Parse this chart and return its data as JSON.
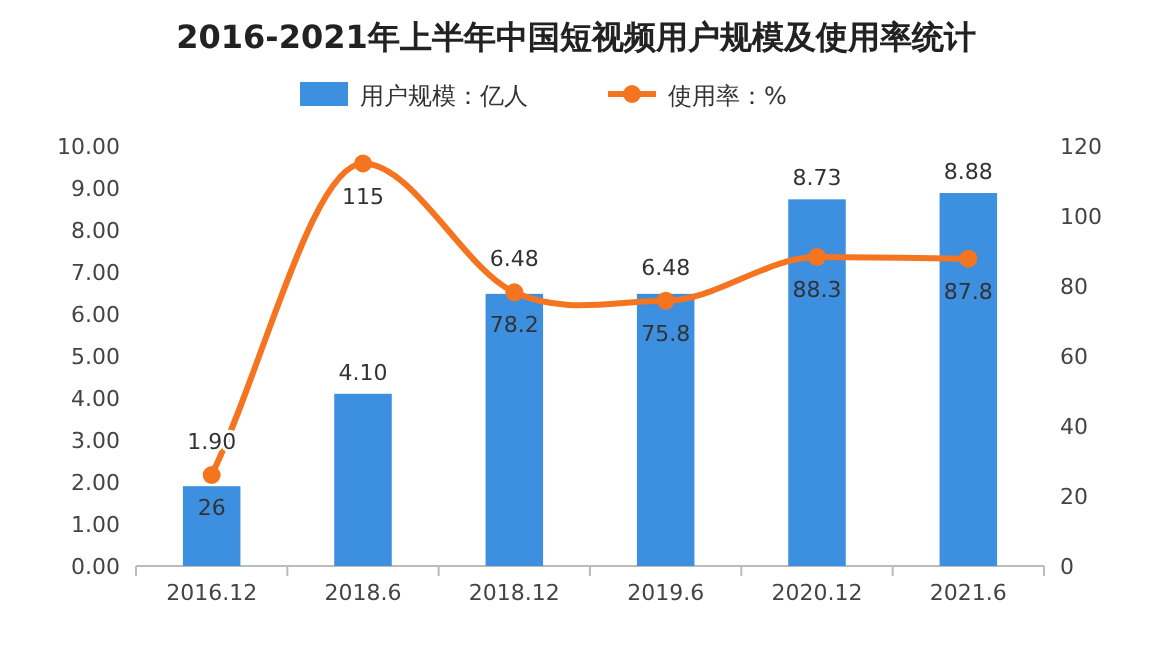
{
  "chart_data": {
    "type": "bar",
    "title": "2016-2021年上半年中国短视频用户规模及使用率统计",
    "categories": [
      "2016.12",
      "2018.6",
      "2018.12",
      "2019.6",
      "2020.12",
      "2021.6"
    ],
    "series": [
      {
        "name": "用户规模：亿人",
        "color": "#3d8fe0",
        "values": [
          1.9,
          4.1,
          6.48,
          6.48,
          8.73,
          8.88
        ],
        "value_labels": [
          "1.90",
          "4.10",
          "6.48",
          "6.48",
          "8.73",
          "8.88"
        ]
      },
      {
        "name": "使用率：%",
        "type": "line",
        "axis": "y2",
        "color": "#f5741f",
        "marker": "circle",
        "values": [
          26,
          115,
          78.2,
          75.8,
          88.3,
          87.8
        ]
      }
    ],
    "ylim": [
      0,
      10
    ],
    "yticks": [
      {
        "value": 0,
        "label": "0.00"
      },
      {
        "value": 1,
        "label": "1.00"
      },
      {
        "value": 2,
        "label": "2.00"
      },
      {
        "value": 3,
        "label": "3.00"
      },
      {
        "value": 4,
        "label": "4.00"
      },
      {
        "value": 5,
        "label": "5.00"
      },
      {
        "value": 6,
        "label": "6.00"
      },
      {
        "value": 7,
        "label": "7.00"
      },
      {
        "value": 8,
        "label": "8.00"
      },
      {
        "value": 9,
        "label": "9.00"
      },
      {
        "value": 10,
        "label": "10.00"
      }
    ],
    "y2lim": [
      0,
      120
    ],
    "y2ticks": [
      0,
      20,
      40,
      60,
      80,
      100,
      120
    ],
    "data_labels": true,
    "legend": "top",
    "grid": false
  }
}
